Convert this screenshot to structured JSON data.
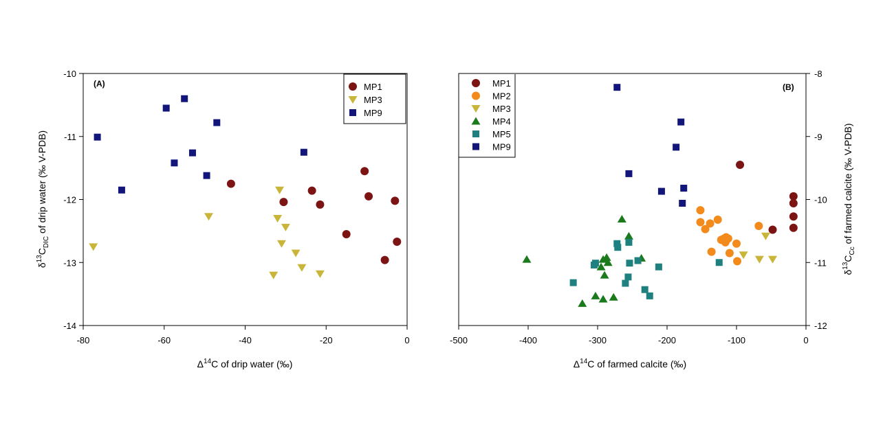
{
  "colors": {
    "MP1": "#7d1414",
    "MP2": "#f28b1c",
    "MP3": "#c9b53a",
    "MP4": "#1b7a1b",
    "MP5": "#1f8080",
    "MP9": "#12167a"
  },
  "chart_data": [
    {
      "type": "scatter",
      "panel_label": "(A)",
      "xlabel_prefix": "Δ",
      "xlabel_sup": "14",
      "xlabel_suffix": "C of drip water (‰)",
      "ylabel_prefix": "δ",
      "ylabel_sup": "13",
      "ylabel_mid": "C",
      "ylabel_sub": "DIC",
      "ylabel_suffix": " of drip water (‰ V-PDB)",
      "xlim": [
        -80,
        0
      ],
      "ylim": [
        -14,
        -10
      ],
      "xticks": [
        "-80",
        "-60",
        "-40",
        "-20",
        "0"
      ],
      "yticks": [
        "-14",
        "-13",
        "-12",
        "-11",
        "-10"
      ],
      "y_axis_side": "left",
      "legend_position": "top-right",
      "series": [
        {
          "name": "MP1",
          "marker": "circle",
          "color": "#7d1414",
          "points": [
            [
              -43.5,
              -11.75
            ],
            [
              -30.5,
              -12.04
            ],
            [
              -23.5,
              -11.86
            ],
            [
              -21.5,
              -12.08
            ],
            [
              -15,
              -12.55
            ],
            [
              -10.5,
              -11.55
            ],
            [
              -9.5,
              -11.95
            ],
            [
              -5.5,
              -12.96
            ],
            [
              -3,
              -12.02
            ],
            [
              -2.5,
              -12.67
            ]
          ]
        },
        {
          "name": "MP3",
          "marker": "triangle-down",
          "color": "#c9b53a",
          "points": [
            [
              -77.5,
              -12.75
            ],
            [
              -49,
              -12.27
            ],
            [
              -33,
              -13.2
            ],
            [
              -32,
              -12.3
            ],
            [
              -31.5,
              -11.85
            ],
            [
              -31,
              -12.7
            ],
            [
              -30,
              -12.44
            ],
            [
              -27.5,
              -12.85
            ],
            [
              -26,
              -13.08
            ],
            [
              -21.5,
              -13.18
            ]
          ]
        },
        {
          "name": "MP9",
          "marker": "square",
          "color": "#12167a",
          "points": [
            [
              -76.5,
              -11.01
            ],
            [
              -70.5,
              -11.85
            ],
            [
              -59.5,
              -10.55
            ],
            [
              -57.5,
              -11.42
            ],
            [
              -55,
              -10.4
            ],
            [
              -53,
              -11.26
            ],
            [
              -49.5,
              -11.62
            ],
            [
              -47,
              -10.78
            ],
            [
              -25.5,
              -11.25
            ]
          ]
        }
      ]
    },
    {
      "type": "scatter",
      "panel_label": "(B)",
      "xlabel_prefix": "Δ",
      "xlabel_sup": "14",
      "xlabel_suffix": "C of farmed calcite (‰)",
      "ylabel_prefix": "δ",
      "ylabel_sup": "13",
      "ylabel_mid": "C",
      "ylabel_sub": "Cc",
      "ylabel_suffix": " of farmed calcite (‰ V-PDB)",
      "xlim": [
        -500,
        0
      ],
      "ylim": [
        -12,
        -8
      ],
      "xticks": [
        "-500",
        "-400",
        "-300",
        "-200",
        "-100",
        "0"
      ],
      "yticks": [
        "-12",
        "-11",
        "-10",
        "-9",
        "-8"
      ],
      "y_axis_side": "right",
      "legend_position": "top-left",
      "series": [
        {
          "name": "MP1",
          "marker": "circle",
          "color": "#7d1414",
          "points": [
            [
              -95,
              -9.45
            ],
            [
              -48,
              -10.48
            ],
            [
              -18,
              -9.95
            ],
            [
              -18,
              -10.06
            ],
            [
              -18,
              -10.27
            ],
            [
              -18,
              -10.45
            ]
          ]
        },
        {
          "name": "MP2",
          "marker": "circle",
          "color": "#f28b1c",
          "points": [
            [
              -152,
              -10.17
            ],
            [
              -152,
              -10.36
            ],
            [
              -145,
              -10.47
            ],
            [
              -138,
              -10.38
            ],
            [
              -136,
              -10.83
            ],
            [
              -127,
              -10.32
            ],
            [
              -122,
              -10.64
            ],
            [
              -118,
              -10.62
            ],
            [
              -116,
              -10.68
            ],
            [
              -115,
              -10.6
            ],
            [
              -112,
              -10.62
            ],
            [
              -110,
              -10.85
            ],
            [
              -100,
              -10.7
            ],
            [
              -99,
              -10.98
            ],
            [
              -68,
              -10.42
            ]
          ]
        },
        {
          "name": "MP3",
          "marker": "triangle-down",
          "color": "#c9b53a",
          "points": [
            [
              -90,
              -10.88
            ],
            [
              -67,
              -10.95
            ],
            [
              -58,
              -10.58
            ],
            [
              -48,
              -10.95
            ]
          ]
        },
        {
          "name": "MP4",
          "marker": "triangle-up",
          "color": "#1b7a1b",
          "points": [
            [
              -402,
              -10.95
            ],
            [
              -322,
              -11.65
            ],
            [
              -303,
              -11.53
            ],
            [
              -295,
              -11.07
            ],
            [
              -292,
              -11.58
            ],
            [
              -292,
              -10.95
            ],
            [
              -290,
              -11.2
            ],
            [
              -287,
              -10.92
            ],
            [
              -285,
              -11.0
            ],
            [
              -277,
              -11.55
            ],
            [
              -265,
              -10.31
            ],
            [
              -255,
              -10.58
            ],
            [
              -237,
              -10.93
            ]
          ]
        },
        {
          "name": "MP5",
          "marker": "square",
          "color": "#1f8080",
          "points": [
            [
              -335,
              -11.32
            ],
            [
              -305,
              -11.04
            ],
            [
              -303,
              -11.01
            ],
            [
              -272,
              -10.7
            ],
            [
              -271,
              -10.76
            ],
            [
              -260,
              -11.33
            ],
            [
              -256,
              -11.23
            ],
            [
              -255,
              -10.68
            ],
            [
              -254,
              -11.01
            ],
            [
              -242,
              -10.97
            ],
            [
              -232,
              -11.43
            ],
            [
              -225,
              -11.53
            ],
            [
              -212,
              -11.07
            ],
            [
              -125,
              -11.0
            ]
          ]
        },
        {
          "name": "MP9",
          "marker": "square",
          "color": "#12167a",
          "points": [
            [
              -272,
              -8.22
            ],
            [
              -255,
              -9.59
            ],
            [
              -208,
              -9.87
            ],
            [
              -187,
              -9.17
            ],
            [
              -180,
              -8.77
            ],
            [
              -178,
              -10.06
            ],
            [
              -176,
              -9.82
            ]
          ]
        }
      ]
    }
  ]
}
